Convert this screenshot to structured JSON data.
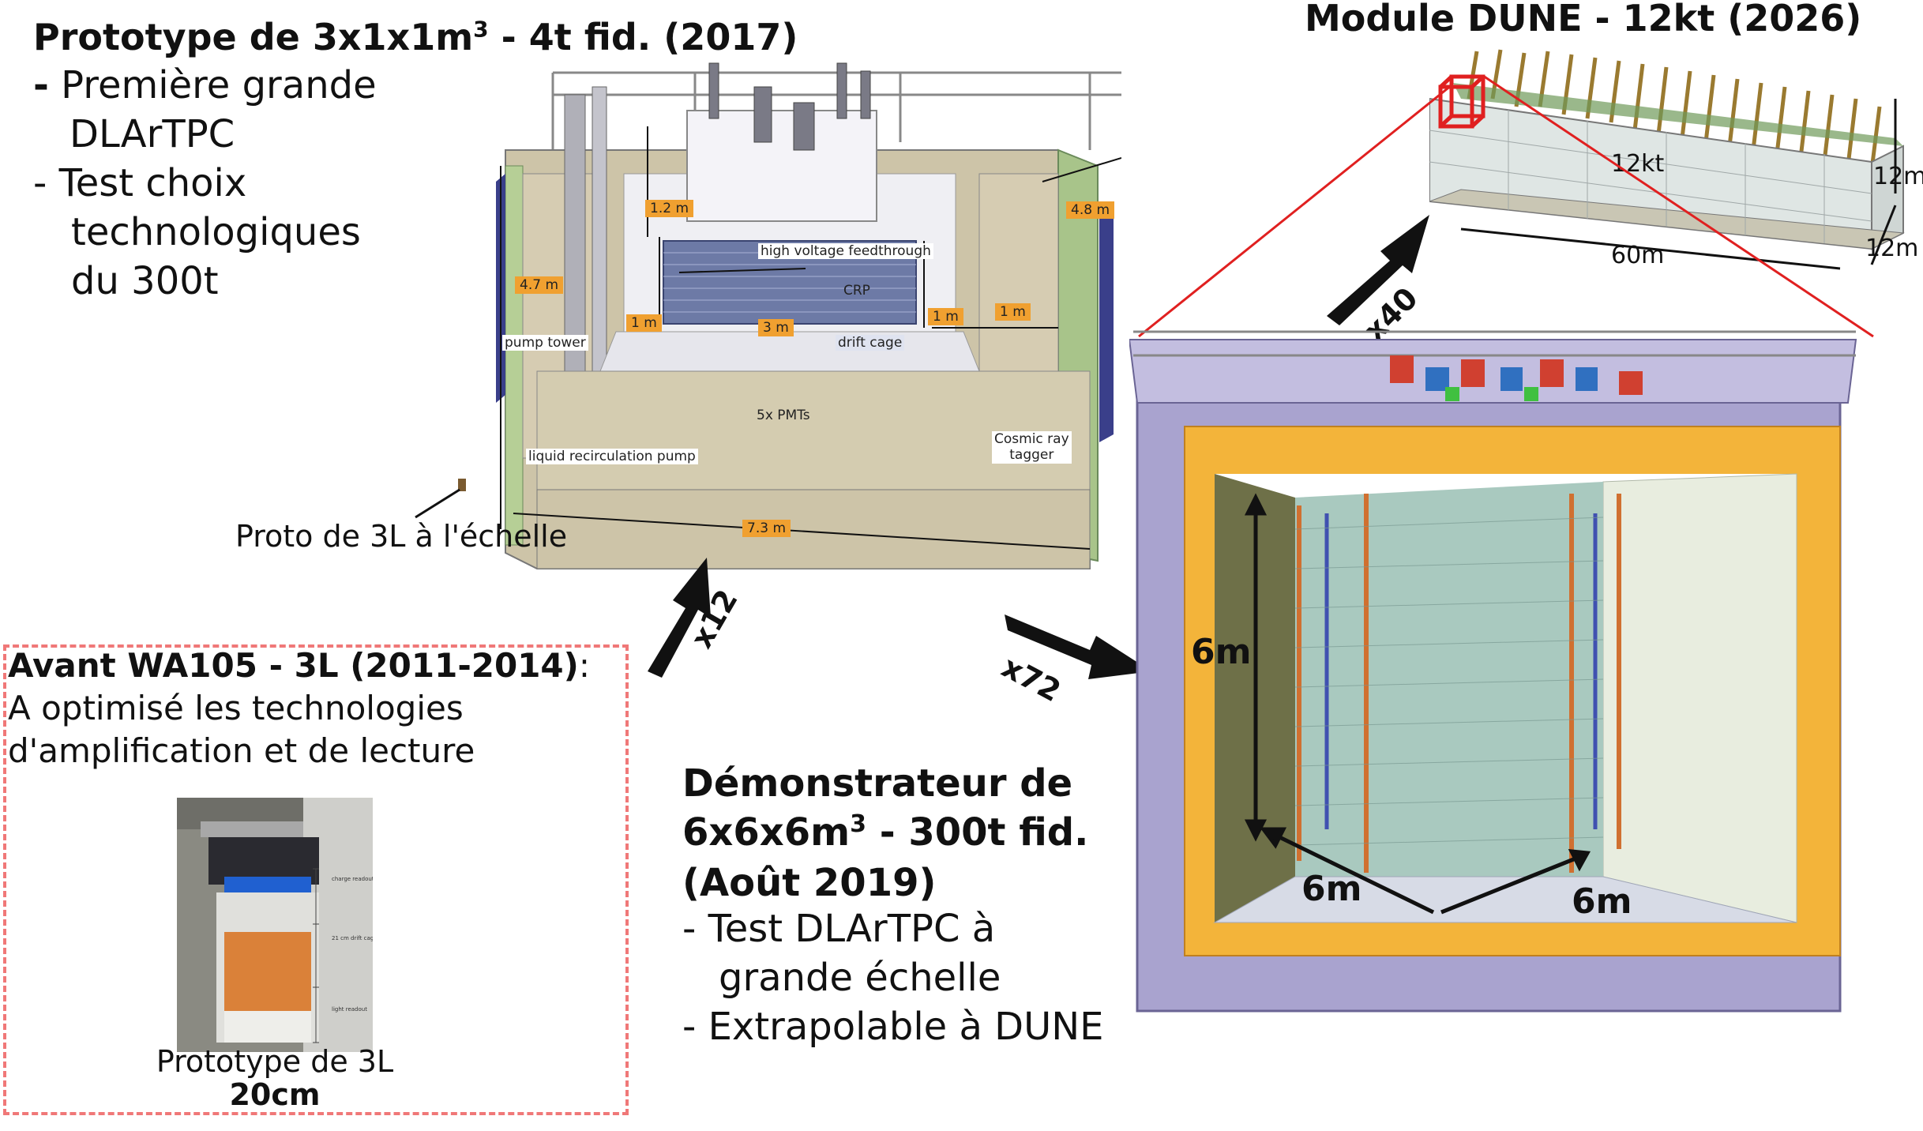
{
  "proto3x1x1": {
    "title_pre": "Prototype de 3x1x1m",
    "title_sup": "3",
    "title_post": " - 4t fid. (2017)",
    "line1_dash": "-",
    "line1_text": " Première grande",
    "line2": "DLArTPC",
    "line3": "- Test choix",
    "line4": "technologiques",
    "line5": "du 300t",
    "labels": {
      "height_top": "1.2 m",
      "height_side": "4.7 m",
      "height_right": "4.8 m",
      "hv": "high voltage feedthrough",
      "crp": "CRP",
      "one_m_left": "1 m",
      "three_m": "3 m",
      "drift_cage": "drift cage",
      "one_m_mid": "1 m",
      "one_m_right": "1 m",
      "pump_tower": "pump tower",
      "pmts": "5x PMTs",
      "recirc": "liquid recirculation pump",
      "cosmic1": "Cosmic ray",
      "cosmic2": "tagger",
      "width": "7.3 m"
    },
    "scale_caption": "Proto de 3L à l'échelle"
  },
  "dune": {
    "title": "Module DUNE - 12kt (2026)",
    "mass": "12kt",
    "h1": "12m",
    "length": "60m",
    "h2": "12m"
  },
  "arrows": {
    "x12": "x12",
    "x72": "x72",
    "x40": "x40"
  },
  "wa105": {
    "title": "Avant WA105 - 3L (2011-2014)",
    "title_suffix": ":",
    "line1": "A optimisé les technologies",
    "line2": "d'amplification et de lecture",
    "photo_labels": [
      "charge readout",
      "21 cm drift cage",
      "light readout"
    ],
    "caption1": "Prototype de 3L",
    "caption2": "20cm"
  },
  "demo": {
    "line1": "Démonstrateur de",
    "line2_pre": "6x6x6m",
    "line2_sup": "3",
    "line2_post": " - 300t fid.",
    "line3": "(Août 2019)",
    "line4": "- Test DLArTPC à",
    "line5": "grande échelle",
    "line6": "- Extrapolable à DUNE",
    "dim_v": "6m",
    "dim_left": "6m",
    "dim_right": "6m"
  },
  "colors": {
    "insulation": "#f3b43a",
    "frame": "#a9a3cf",
    "inner_wall": "#6e7048",
    "proto_wall": "#cfc4aa",
    "accent_red": "#e02020",
    "wa105_border": "#f07878"
  }
}
